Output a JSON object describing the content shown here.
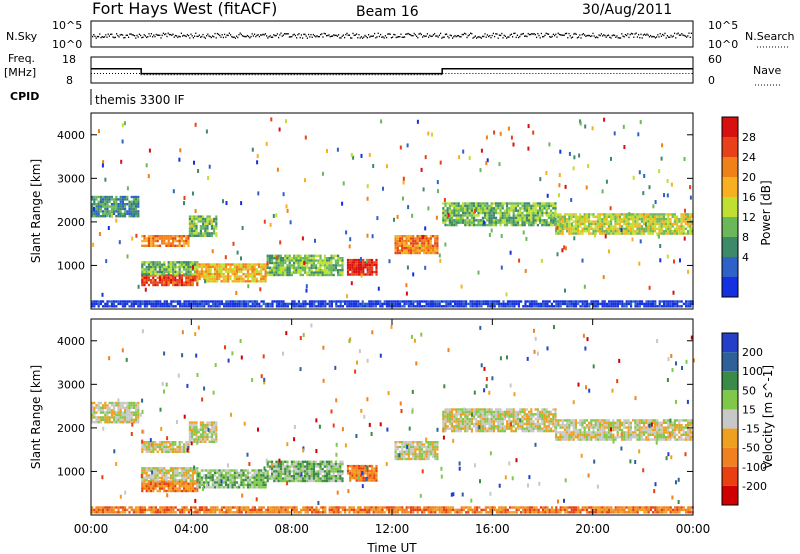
{
  "header": {
    "title": "Fort Hays West (fitACF)",
    "beam": "Beam 16",
    "date": "30/Aug/2011"
  },
  "top_panels": {
    "nsky_label": "N.Sky",
    "nsky_ticks": [
      "10^5",
      "10^0"
    ],
    "nsearch_label": "N.Search",
    "nsearch_ticks": [
      "10^5",
      "10^0"
    ],
    "freq_label_1": "Freq.",
    "freq_label_2": "[MHz]",
    "freq_ticks": [
      "18",
      "8"
    ],
    "nave_label": "Nave",
    "nave_ticks": [
      "60",
      "0"
    ],
    "cpid_label": "CPID",
    "cpid_value": "themis 3300 IF"
  },
  "x_axis": {
    "label": "Time UT",
    "ticks": [
      "00:00",
      "04:00",
      "08:00",
      "12:00",
      "16:00",
      "20:00",
      "00:00"
    ]
  },
  "colors": {
    "power": [
      "#1530e0",
      "#2e62c8",
      "#3c8a6a",
      "#6ab85a",
      "#bfe030",
      "#f7b020",
      "#f08018",
      "#e84018",
      "#d81010"
    ],
    "velocity": [
      "#2440c8",
      "#30609a",
      "#3a8a48",
      "#80c84a",
      "#c8c8c8",
      "#f0a020",
      "#f08020",
      "#e84010",
      "#d00000"
    ]
  },
  "chart_data": [
    {
      "type": "line",
      "title": "N.Sky / N.Search",
      "x_range_hours": [
        0,
        24
      ],
      "ylim": [
        1,
        100000
      ],
      "y_scale": "log",
      "series": []
    },
    {
      "type": "line",
      "title": "Freq. / Nave",
      "x_range_hours": [
        0,
        24
      ],
      "freq_ylim": [
        8,
        18
      ],
      "nave_ylim": [
        0,
        60
      ],
      "freq_segments": [
        {
          "from": 0,
          "to": 2.0,
          "value": 13.5
        },
        {
          "from": 2.0,
          "to": 14.0,
          "value": 11.6
        },
        {
          "from": 14.0,
          "to": 24,
          "value": 13.5
        }
      ],
      "nave_segments": [
        {
          "from": 0,
          "to": 2.0,
          "value": 22
        },
        {
          "from": 2.0,
          "to": 14.0,
          "value": 19
        },
        {
          "from": 14.0,
          "to": 24,
          "value": 22
        }
      ]
    },
    {
      "type": "heatmap",
      "title": "Power",
      "ylabel": "Slant Range [km]",
      "xlabel": "Time UT",
      "xlim": [
        0,
        24
      ],
      "ylim": [
        0,
        4500
      ],
      "yticks": [
        1000,
        2000,
        3000,
        4000
      ],
      "colorbar_label": "Power [dB]",
      "colorbar_ticks": [
        4,
        8,
        12,
        16,
        20,
        24,
        28
      ],
      "regions": [
        {
          "t0": 0.0,
          "t1": 1.9,
          "r0": 2150,
          "r1": 2600,
          "level": 2
        },
        {
          "t0": 2.0,
          "t1": 3.9,
          "r0": 1450,
          "r1": 1700,
          "level": 6
        },
        {
          "t0": 3.9,
          "t1": 5.0,
          "r0": 1700,
          "r1": 2150,
          "level": 3
        },
        {
          "t0": 2.0,
          "t1": 4.2,
          "r0": 550,
          "r1": 800,
          "level": 7
        },
        {
          "t0": 2.0,
          "t1": 4.2,
          "r0": 800,
          "r1": 1100,
          "level": 3
        },
        {
          "t0": 4.2,
          "t1": 7.0,
          "r0": 650,
          "r1": 1050,
          "level": 5
        },
        {
          "t0": 7.0,
          "t1": 10.0,
          "r0": 800,
          "r1": 1250,
          "level": 3
        },
        {
          "t0": 10.2,
          "t1": 11.4,
          "r0": 800,
          "r1": 1150,
          "level": 8
        },
        {
          "t0": 12.1,
          "t1": 13.8,
          "r0": 1300,
          "r1": 1700,
          "level": 6
        },
        {
          "t0": 14.0,
          "t1": 18.5,
          "r0": 1950,
          "r1": 2450,
          "level": 3
        },
        {
          "t0": 18.5,
          "t1": 24.0,
          "r0": 1750,
          "r1": 2200,
          "level": 4
        },
        {
          "t0": 0.0,
          "t1": 24.0,
          "r0": 80,
          "r1": 200,
          "level": 0
        }
      ]
    },
    {
      "type": "heatmap",
      "title": "Velocity",
      "ylabel": "Slant Range [km]",
      "xlabel": "Time UT",
      "xlim": [
        0,
        24
      ],
      "ylim": [
        0,
        4500
      ],
      "yticks": [
        1000,
        2000,
        3000,
        4000
      ],
      "colorbar_label": "Velocity [m s^-1]",
      "colorbar_ticks": [
        200,
        100,
        50,
        15,
        -15,
        -50,
        -100,
        -200
      ],
      "regions": [
        {
          "t0": 0.0,
          "t1": 1.9,
          "r0": 2150,
          "r1": 2600,
          "level": 4
        },
        {
          "t0": 2.0,
          "t1": 3.9,
          "r0": 1450,
          "r1": 1700,
          "level": 4
        },
        {
          "t0": 3.9,
          "t1": 5.0,
          "r0": 1700,
          "r1": 2150,
          "level": 4
        },
        {
          "t0": 2.0,
          "t1": 4.2,
          "r0": 550,
          "r1": 800,
          "level": 6
        },
        {
          "t0": 2.0,
          "t1": 4.2,
          "r0": 800,
          "r1": 1100,
          "level": 4
        },
        {
          "t0": 4.2,
          "t1": 7.0,
          "r0": 650,
          "r1": 1050,
          "level": 3
        },
        {
          "t0": 7.0,
          "t1": 10.0,
          "r0": 800,
          "r1": 1250,
          "level": 3
        },
        {
          "t0": 10.2,
          "t1": 11.4,
          "r0": 800,
          "r1": 1150,
          "level": 6
        },
        {
          "t0": 12.1,
          "t1": 13.8,
          "r0": 1300,
          "r1": 1700,
          "level": 4
        },
        {
          "t0": 14.0,
          "t1": 18.5,
          "r0": 1950,
          "r1": 2450,
          "level": 4
        },
        {
          "t0": 18.5,
          "t1": 24.0,
          "r0": 1750,
          "r1": 2200,
          "level": 4
        },
        {
          "t0": 0.0,
          "t1": 24.0,
          "r0": 80,
          "r1": 200,
          "level": 6
        }
      ]
    }
  ]
}
